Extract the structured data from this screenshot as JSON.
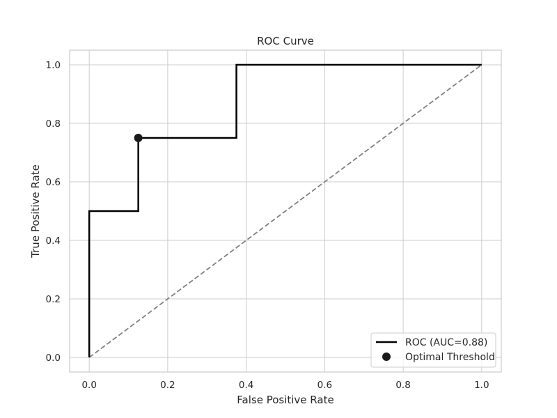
{
  "chart_data": {
    "type": "line",
    "title": "ROC Curve",
    "xlabel": "False Positive Rate",
    "ylabel": "True Positive Rate",
    "xlim": [
      -0.05,
      1.05
    ],
    "ylim": [
      -0.05,
      1.05
    ],
    "grid": true,
    "legend_position": "lower-right",
    "x_ticks": [
      "0.0",
      "0.2",
      "0.4",
      "0.6",
      "0.8",
      "1.0"
    ],
    "y_ticks": [
      "0.0",
      "0.2",
      "0.4",
      "0.6",
      "0.8",
      "1.0"
    ],
    "series": [
      {
        "name": "ROC (AUC=0.88)",
        "style": "solid",
        "color": "#000000",
        "x": [
          0.0,
          0.0,
          0.125,
          0.125,
          0.375,
          0.375,
          1.0
        ],
        "y": [
          0.0,
          0.5,
          0.5,
          0.75,
          0.75,
          1.0,
          1.0
        ]
      },
      {
        "style": "dashed",
        "color": "#808080",
        "x": [
          0.0,
          1.0
        ],
        "y": [
          0.0,
          1.0
        ]
      }
    ],
    "points": [
      {
        "name": "Optimal Threshold",
        "x": 0.125,
        "y": 0.75,
        "color": "#1a1a1a"
      }
    ],
    "colors": {
      "grid": "#cccccc",
      "spine": "#cccccc",
      "text": "#262626",
      "background": "#ffffff"
    }
  }
}
